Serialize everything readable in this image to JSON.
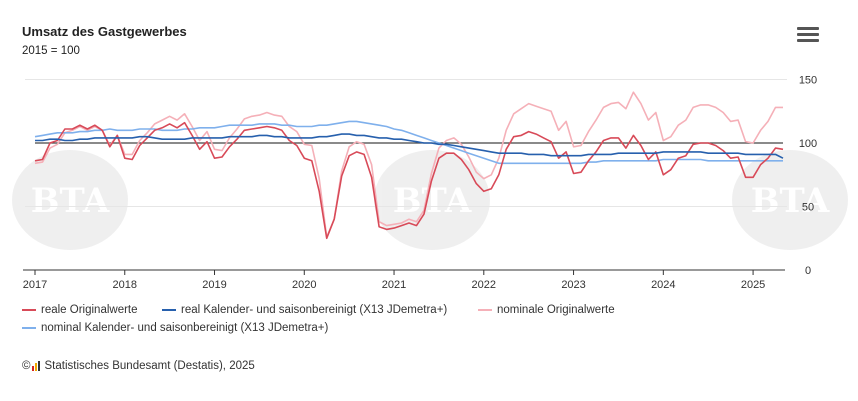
{
  "title": "Umsatz des Gastgewerbes",
  "subtitle": "2015 = 100",
  "menu_icon": "hamburger-menu-icon",
  "watermark": "BTA",
  "source": {
    "prefix": "©",
    "icon": "destatis-logo-icon",
    "text": "Statistisches Bundesamt (Destatis), 2025"
  },
  "colors": {
    "reale_orig": "#d84a58",
    "real_ks": "#2760ad",
    "nominale_orig": "#f5b0b8",
    "nominal_ks": "#7fb0ec",
    "reference_line": "#444444",
    "grid": "#e6e6e6"
  },
  "chart_data": {
    "type": "line",
    "title": "Umsatz des Gastgewerbes",
    "subtitle": "2015 = 100",
    "x_start": "2017-01",
    "x_end": "2025-06",
    "x_ticks": [
      "2017",
      "2018",
      "2019",
      "2020",
      "2021",
      "2022",
      "2023",
      "2024",
      "2025"
    ],
    "y_ticks": [
      0,
      50,
      100,
      150
    ],
    "ylim": [
      0,
      155
    ],
    "y_axis_side": "right",
    "reference_line": 100,
    "grid": "horizontal",
    "legend_position": "bottom",
    "series": [
      {
        "name": "reale Originalwerte",
        "color_key": "reale_orig",
        "values": [
          86,
          87,
          100,
          102,
          111,
          111,
          114,
          111,
          114,
          110,
          97,
          106,
          88,
          87,
          98,
          104,
          110,
          112,
          115,
          112,
          116,
          106,
          95,
          101,
          88,
          89,
          97,
          103,
          110,
          111,
          112,
          113,
          112,
          110,
          102,
          98,
          88,
          86,
          62,
          25,
          40,
          74,
          90,
          93,
          91,
          73,
          34,
          32,
          33,
          35,
          37,
          35,
          44,
          70,
          88,
          92,
          92,
          87,
          79,
          68,
          62,
          64,
          75,
          95,
          105,
          106,
          109,
          107,
          104,
          101,
          88,
          93,
          76,
          77,
          86,
          93,
          102,
          104,
          104,
          96,
          106,
          98,
          87,
          93,
          75,
          79,
          88,
          90,
          99,
          100,
          100,
          98,
          94,
          88,
          89,
          73,
          73,
          83,
          88,
          96,
          95
        ],
        "units": "Index 2015 = 100"
      },
      {
        "name": "real Kalender- und saisonbereinigt (X13 JDemetra+)",
        "color_key": "real_ks",
        "values": [
          102,
          102,
          103,
          103,
          102,
          102,
          103,
          103,
          104,
          104,
          104,
          104,
          104,
          104,
          105,
          105,
          104,
          103,
          103,
          103,
          103,
          104,
          104,
          104,
          104,
          104,
          105,
          105,
          105,
          105,
          106,
          106,
          105,
          105,
          104,
          104,
          104,
          104,
          105,
          105,
          106,
          107,
          107,
          106,
          106,
          105,
          104,
          104,
          103,
          103,
          102,
          101,
          100,
          100,
          99,
          99,
          98,
          97,
          96,
          95,
          94,
          93,
          92,
          92,
          92,
          92,
          91,
          91,
          91,
          90,
          90,
          90,
          90,
          90,
          91,
          91,
          91,
          91,
          92,
          92,
          92,
          92,
          92,
          92,
          93,
          93,
          93,
          93,
          93,
          93,
          92,
          92,
          92,
          92,
          92,
          91,
          91,
          91,
          91,
          91,
          88
        ],
        "units": "Index 2015 = 100"
      },
      {
        "name": "nominale Originalwerte",
        "color_key": "nominale_orig",
        "values": [
          84,
          85,
          96,
          99,
          108,
          110,
          113,
          110,
          113,
          110,
          98,
          106,
          91,
          91,
          102,
          108,
          115,
          118,
          121,
          118,
          123,
          113,
          102,
          109,
          95,
          94,
          104,
          111,
          119,
          121,
          122,
          124,
          122,
          121,
          113,
          109,
          99,
          98,
          72,
          26,
          40,
          78,
          97,
          101,
          99,
          83,
          38,
          35,
          36,
          37,
          40,
          38,
          47,
          76,
          96,
          102,
          104,
          99,
          89,
          77,
          72,
          75,
          88,
          110,
          123,
          127,
          131,
          129,
          127,
          125,
          110,
          117,
          97,
          98,
          109,
          118,
          128,
          131,
          132,
          127,
          140,
          131,
          118,
          124,
          102,
          105,
          114,
          118,
          128,
          130,
          130,
          128,
          124,
          117,
          118,
          101,
          100,
          110,
          117,
          128,
          128
        ],
        "units": "Index 2015 = 100"
      },
      {
        "name": "nominal Kalender- und saisonbereinigt (X13 JDemetra+)",
        "color_key": "nominal_ks",
        "values": [
          105,
          106,
          107,
          108,
          108,
          108,
          109,
          109,
          110,
          110,
          111,
          110,
          110,
          110,
          111,
          111,
          111,
          110,
          110,
          110,
          111,
          111,
          112,
          112,
          112,
          113,
          114,
          114,
          114,
          114,
          115,
          115,
          115,
          114,
          114,
          113,
          113,
          113,
          114,
          114,
          115,
          116,
          117,
          117,
          116,
          115,
          114,
          113,
          111,
          110,
          108,
          106,
          104,
          102,
          100,
          98,
          96,
          94,
          92,
          90,
          88,
          86,
          84,
          84,
          84,
          84,
          84,
          84,
          84,
          84,
          84,
          84,
          84,
          84,
          85,
          85,
          86,
          86,
          86,
          86,
          86,
          86,
          86,
          86,
          87,
          87,
          87,
          87,
          87,
          87,
          86,
          86,
          86,
          86,
          86,
          86,
          86,
          86,
          86,
          86,
          86
        ],
        "units": "Index 2015 = 100"
      }
    ]
  },
  "legend": [
    {
      "label": "reale Originalwerte",
      "color_key": "reale_orig"
    },
    {
      "label": "real Kalender- und saisonbereinigt (X13 JDemetra+)",
      "color_key": "real_ks"
    },
    {
      "label": "nominale Originalwerte",
      "color_key": "nominale_orig"
    },
    {
      "label": "nominal Kalender- und saisonbereinigt (X13 JDemetra+)",
      "color_key": "nominal_ks"
    }
  ]
}
